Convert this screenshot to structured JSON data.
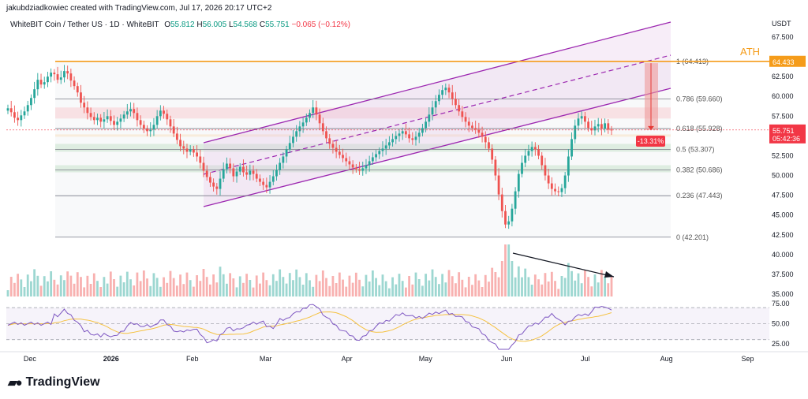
{
  "header": {
    "credit": "jakubdziadkowiec created with TradingView.com, Jul 17, 2026 20:17 UTC+2",
    "symbol": "WhiteBIT Coin / Tether US · 1D · WhiteBIT",
    "o_label": "O",
    "o": "55.812",
    "h_label": "H",
    "h": "56.005",
    "l_label": "L",
    "l": "54.568",
    "c_label": "C",
    "c": "55.751",
    "change": "−0.065 (−0.12%)"
  },
  "price_axis": {
    "currency": "USDT",
    "ticks": [
      "67.500",
      "65.000",
      "62.500",
      "60.000",
      "57.500",
      "55.000",
      "52.500",
      "50.000",
      "47.500",
      "45.000",
      "42.500",
      "40.000",
      "37.500",
      "35.000"
    ],
    "ath_badge": "64.433",
    "last_price": "55.751",
    "countdown": "05:42:36"
  },
  "rsi_axis": {
    "ticks": [
      "75.00",
      "50.00",
      "25.00"
    ]
  },
  "time_axis": {
    "ticks": [
      "Dec",
      "2026",
      "Feb",
      "Mar",
      "Apr",
      "May",
      "Jun",
      "Jul",
      "Aug",
      "Sep"
    ]
  },
  "annotations": {
    "ath": "ATH",
    "drop": "-13.31%"
  },
  "fib_levels": [
    {
      "ratio": "1",
      "price": "64.413",
      "label": "1 (64.413)"
    },
    {
      "ratio": "0.786",
      "price": "59.660",
      "label": "0.786 (59.660)"
    },
    {
      "ratio": "0.618",
      "price": "55.928",
      "label": "0.618 (55.928)"
    },
    {
      "ratio": "0.5",
      "price": "53.307",
      "label": "0.5 (53.307)"
    },
    {
      "ratio": "0.382",
      "price": "50.686",
      "label": "0.382 (50.686)"
    },
    {
      "ratio": "0.236",
      "price": "47.443",
      "label": "0.236 (47.443)"
    },
    {
      "ratio": "0",
      "price": "42.201",
      "label": "0 (42.201)"
    }
  ],
  "colors": {
    "up": "#26a69a",
    "down": "#ef5350",
    "fib": "#787b86",
    "ath": "#f59c1a",
    "channel": "#9c27b0",
    "rsi": "#7e57c2",
    "rsi_ma": "#f5c242"
  },
  "logo": "TradingView",
  "chart_data": {
    "type": "candlestick",
    "interval": "1D",
    "x_range": [
      "2025-11-22",
      "2026-09-08"
    ],
    "y_range": [
      35,
      68.5
    ],
    "ath_level": 64.433,
    "last_close": 55.751,
    "closes": [
      58.5,
      58.0,
      57.3,
      57.0,
      57.6,
      58.1,
      58.9,
      59.8,
      60.9,
      62.1,
      61.5,
      61.8,
      62.5,
      63.0,
      62.8,
      62.1,
      62.4,
      63.2,
      62.9,
      62.0,
      61.3,
      60.5,
      59.2,
      58.6,
      57.9,
      57.4,
      57.0,
      57.3,
      56.8,
      57.1,
      57.5,
      56.9,
      56.4,
      56.8,
      57.2,
      57.7,
      58.1,
      58.4,
      57.9,
      57.0,
      56.4,
      55.9,
      55.6,
      55.8,
      56.4,
      57.5,
      58.2,
      57.8,
      57.1,
      56.2,
      55.3,
      54.5,
      53.7,
      53.4,
      53.0,
      53.3,
      52.9,
      52.4,
      51.6,
      50.6,
      49.8,
      49.1,
      48.6,
      48.3,
      49.6,
      50.8,
      51.5,
      50.9,
      49.9,
      50.5,
      51.1,
      50.4,
      50.1,
      50.6,
      50.2,
      49.6,
      49.2,
      48.8,
      48.5,
      49.2,
      49.9,
      50.7,
      51.6,
      52.4,
      53.3,
      54.1,
      54.9,
      55.6,
      56.2,
      56.7,
      57.3,
      57.9,
      58.6,
      57.7,
      56.6,
      55.6,
      54.7,
      54.0,
      53.5,
      53.0,
      52.6,
      52.2,
      51.8,
      51.4,
      51.0,
      50.8,
      50.6,
      50.9,
      51.3,
      51.8,
      52.3,
      52.7,
      53.1,
      53.4,
      53.8,
      54.2,
      54.6,
      55.0,
      55.3,
      55.6,
      55.2,
      54.7,
      54.5,
      54.9,
      55.4,
      56.0,
      56.8,
      57.7,
      58.6,
      59.4,
      60.2,
      60.8,
      61.1,
      60.5,
      59.7,
      58.9,
      58.1,
      57.4,
      56.8,
      56.3,
      56.0,
      55.8,
      55.4,
      54.9,
      54.2,
      53.4,
      52.0,
      50.0,
      47.6,
      45.5,
      43.8,
      44.2,
      45.8,
      48.0,
      50.2,
      51.6,
      52.5,
      53.1,
      53.6,
      53.3,
      52.5,
      51.3,
      50.0,
      49.0,
      48.3,
      48.0,
      47.9,
      48.4,
      50.0,
      52.4,
      54.6,
      56.3,
      57.2,
      57.5,
      56.8,
      56.0,
      55.7,
      56.2,
      56.5,
      55.9,
      56.6,
      55.8,
      55.751
    ],
    "ohlc_last": {
      "open": 55.812,
      "high": 56.005,
      "low": 54.568,
      "close": 55.751
    },
    "rsi_range": [
      15,
      80
    ],
    "rsi_levels": [
      70,
      50,
      30
    ]
  }
}
